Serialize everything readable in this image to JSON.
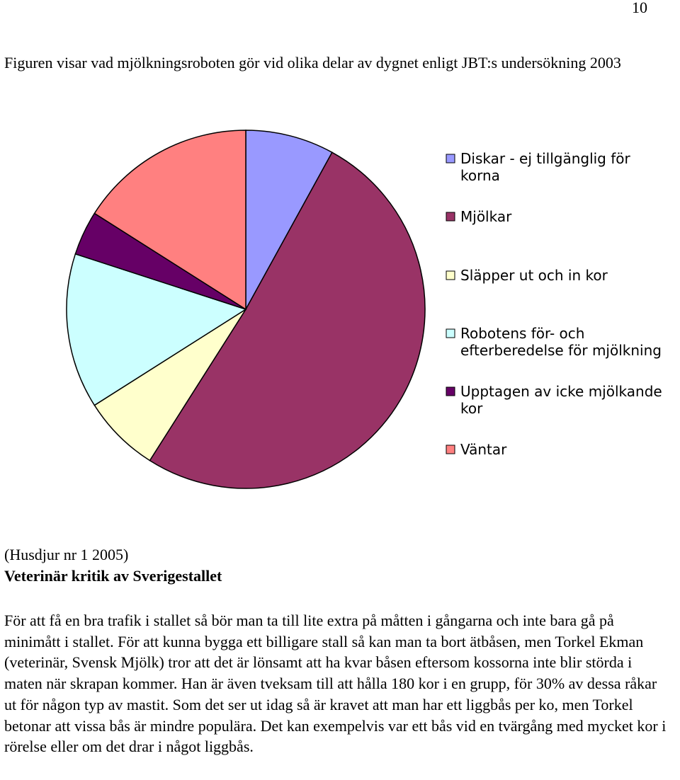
{
  "page": {
    "number": "10",
    "caption": "Figuren visar vad mjölkningsroboten gör vid olika delar av dygnet enligt JBT:s undersökning 2003",
    "source": "(Husdjur nr 1 2005)",
    "heading": "Veterinär kritik av Sverigestallet",
    "body": "För att få en bra trafik i stallet så bör man ta till lite extra på måtten i gångarna och inte bara gå på minimått i stallet. För att kunna bygga ett billigare stall så kan man ta bort ätbåsen, men Torkel Ekman (veterinär, Svensk Mjölk) tror att det är lönsamt att ha kvar båsen eftersom kossorna inte blir störda i maten när skrapan kommer. Han är även tveksam till att hålla 180 kor i en grupp, för 30% av dessa råkar ut för någon typ av mastit. Som det ser ut idag så är kravet att man har ett liggbås per ko, men Torkel betonar att vissa bås är mindre populära. Det kan exempelvis var ett bås vid en tvärgång med mycket kor i rörelse eller om det drar i något liggbås."
  },
  "chart_data": {
    "type": "pie",
    "start": "12 o'clock",
    "direction": "clockwise",
    "legend_position": "right",
    "legend": [
      [
        "Diskar - ej tillgänglig för",
        "korna"
      ],
      [
        "Mjölkar"
      ],
      [
        "Släpper ut och in kor"
      ],
      [
        "Robotens för- och",
        "efterberedelse för mjölkning"
      ],
      [
        "Upptagen av icke mjölkande",
        "kor"
      ],
      [
        "Väntar"
      ]
    ],
    "slices": [
      {
        "label": "Diskar - ej tillgänglig för korna",
        "value": 8,
        "color": "#9999ff"
      },
      {
        "label": "Mjölkar",
        "value": 51,
        "color": "#993366"
      },
      {
        "label": "Släpper ut och in kor",
        "value": 7,
        "color": "#ffffcc"
      },
      {
        "label": "Robotens för- och efterberedelse för mjölkning",
        "value": 14,
        "color": "#ccffff"
      },
      {
        "label": "Upptagen av icke mjölkande kor",
        "value": 4,
        "color": "#660066"
      },
      {
        "label": "Väntar",
        "value": 16,
        "color": "#ff8080"
      }
    ]
  }
}
